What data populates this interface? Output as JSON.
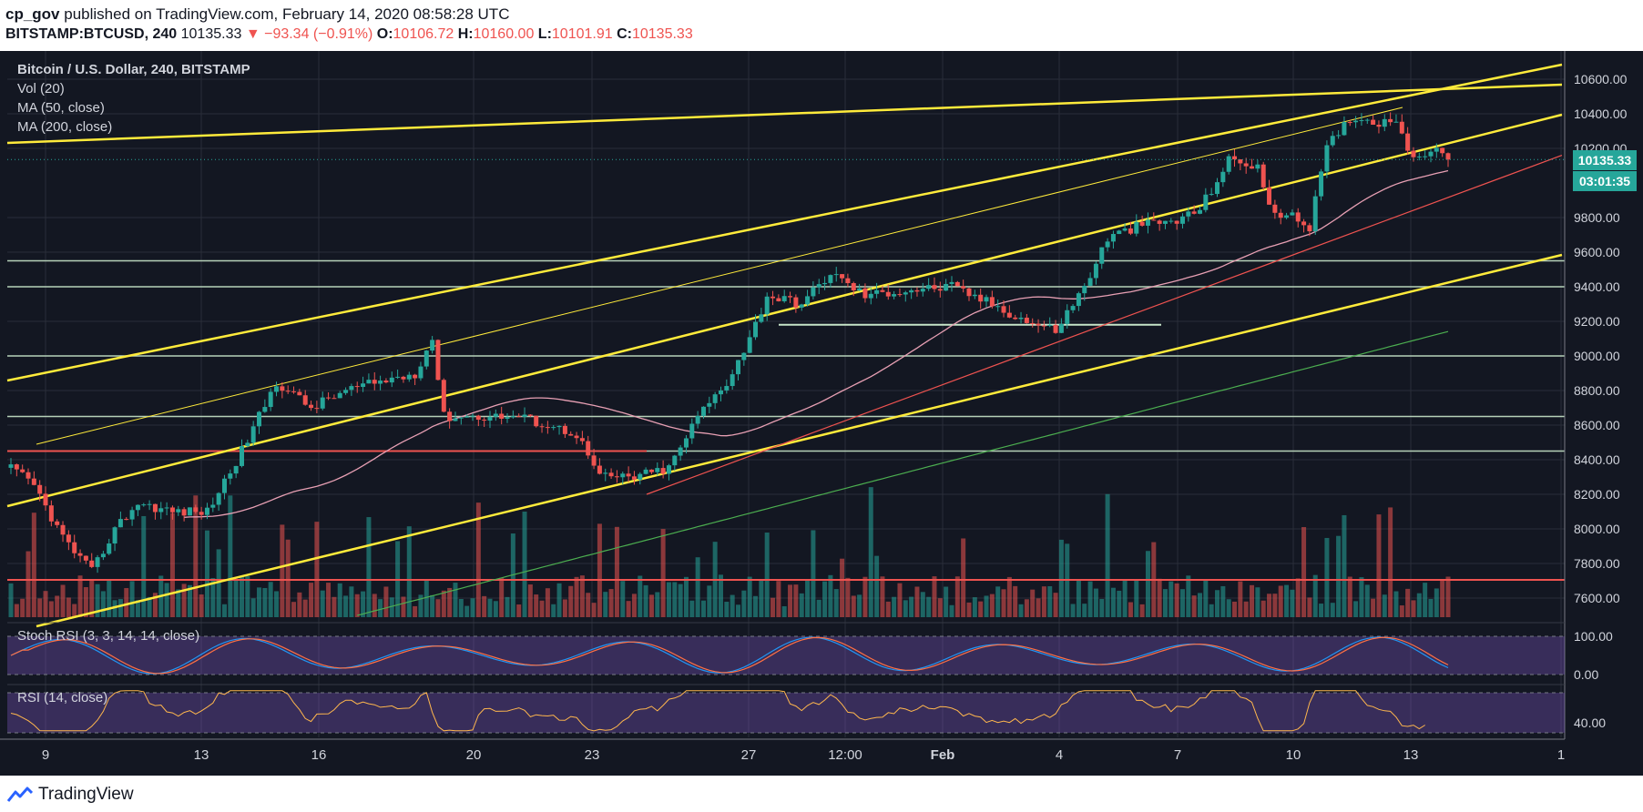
{
  "header": {
    "user": "cp_gov",
    "published_text": "published on TradingView.com, February 14, 2020 08:58:28 UTC",
    "symbol": "BITSTAMP:BTCUSD, 240",
    "last_price": "10135.33",
    "change": "▼ −93.34 (−0.91%)",
    "o_label": "O:",
    "o_value": "10106.72",
    "h_label": "H:",
    "h_value": "10160.00",
    "l_label": "L:",
    "l_value": "10101.91",
    "c_label": "C:",
    "c_value": "10135.33"
  },
  "legend": {
    "title": "Bitcoin / U.S. Dollar, 240, BITSTAMP",
    "vol": "Vol (20)",
    "ma50": "MA (50, close)",
    "ma200": "MA (200, close)"
  },
  "indicators": {
    "stoch_title": "Stoch RSI (3, 3, 14, 14, close)",
    "rsi_title": "RSI (14, close)"
  },
  "price_labels": {
    "last": "10135.33",
    "countdown": "03:01:35"
  },
  "footer": {
    "brand": "TradingView"
  },
  "colors": {
    "background": "#131722",
    "up": "#26a69a",
    "down": "#ef5350",
    "trendline": "#ffeb3b",
    "ma50": "#e8a0b4",
    "ma200": "#4caf50",
    "support": "#c8e6c9",
    "resistance_red": "#ef5350"
  },
  "chart_data": {
    "type": "candlestick",
    "title": "Bitcoin / U.S. Dollar, 240, BITSTAMP",
    "price_axis_ticks": [
      7600,
      7800,
      8000,
      8200,
      8400,
      8600,
      8800,
      9000,
      9200,
      9400,
      9600,
      9800,
      10200,
      10400,
      10600
    ],
    "ylim": [
      7500,
      10700
    ],
    "x_axis_ticks": [
      "9",
      "13",
      "16",
      "20",
      "23",
      "27",
      "12:00",
      "Feb",
      "4",
      "7",
      "10",
      "13",
      "1"
    ],
    "last_price": 10135.33,
    "horizontal_levels": [
      9550,
      9400,
      9000,
      8650,
      8450
    ],
    "price_anchors": [
      [
        0,
        8350
      ],
      [
        4,
        8250
      ],
      [
        9,
        7950
      ],
      [
        14,
        7750
      ],
      [
        18,
        8000
      ],
      [
        22,
        8150
      ],
      [
        28,
        8100
      ],
      [
        34,
        8100
      ],
      [
        40,
        8450
      ],
      [
        46,
        8850
      ],
      [
        52,
        8700
      ],
      [
        58,
        8800
      ],
      [
        64,
        8850
      ],
      [
        70,
        8900
      ],
      [
        73,
        9100
      ],
      [
        75,
        8650
      ],
      [
        81,
        8650
      ],
      [
        88,
        8650
      ],
      [
        93,
        8600
      ],
      [
        98,
        8550
      ],
      [
        102,
        8300
      ],
      [
        108,
        8300
      ],
      [
        114,
        8350
      ],
      [
        119,
        8650
      ],
      [
        124,
        8850
      ],
      [
        128,
        9100
      ],
      [
        131,
        9350
      ],
      [
        137,
        9300
      ],
      [
        142,
        9480
      ],
      [
        148,
        9350
      ],
      [
        155,
        9380
      ],
      [
        163,
        9400
      ],
      [
        170,
        9300
      ],
      [
        176,
        9200
      ],
      [
        181,
        9150
      ],
      [
        186,
        9400
      ],
      [
        190,
        9680
      ],
      [
        196,
        9760
      ],
      [
        202,
        9780
      ],
      [
        206,
        9850
      ],
      [
        211,
        10130
      ],
      [
        216,
        10100
      ],
      [
        218,
        9850
      ],
      [
        222,
        9800
      ],
      [
        225,
        9750
      ],
      [
        228,
        10200
      ],
      [
        232,
        10380
      ],
      [
        238,
        10350
      ],
      [
        240,
        10380
      ],
      [
        243,
        10120
      ],
      [
        246,
        10200
      ],
      [
        249,
        10135
      ]
    ],
    "stoch_rsi": {
      "levels": [
        80,
        20
      ],
      "axis_ticks": [
        100,
        0
      ]
    },
    "rsi": {
      "levels": [
        70,
        30
      ],
      "axis_ticks": [
        40
      ]
    }
  }
}
